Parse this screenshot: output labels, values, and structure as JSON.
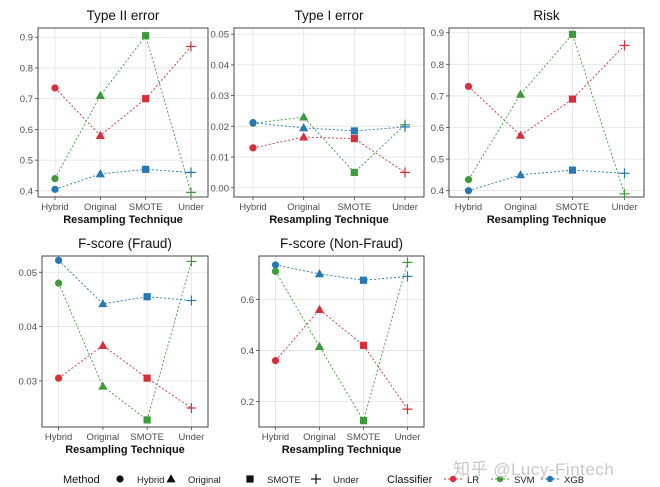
{
  "colors": {
    "LR": "#d62f3a",
    "SVM": "#3e9b3a",
    "XGB": "#2678b2"
  },
  "xlabel": "Resampling Technique",
  "categories": [
    "Hybrid",
    "Original",
    "SMOTE",
    "Under"
  ],
  "legend": {
    "method_title": "Method",
    "methods": [
      {
        "label": "Hybrid",
        "shape": "circle"
      },
      {
        "label": "Original",
        "shape": "triangle"
      },
      {
        "label": "SMOTE",
        "shape": "square"
      },
      {
        "label": "Under",
        "shape": "plus"
      }
    ],
    "classifier_title": "Classifier",
    "classifiers": [
      "LR",
      "SVM",
      "XGB"
    ]
  },
  "watermark": "知乎 @Lucy-Fintech",
  "chart_data": [
    {
      "type": "scatter",
      "title": "Type II error",
      "ylim": [
        0.38,
        0.93
      ],
      "yticks": [
        0.4,
        0.5,
        0.6,
        0.7,
        0.8,
        0.9
      ],
      "ytick_labels": [
        "0.4",
        "0.5",
        "0.6",
        "0.7",
        "0.8",
        "0.9"
      ],
      "xlabel": "Resampling Technique",
      "series": [
        {
          "name": "LR",
          "values": [
            0.735,
            0.58,
            0.7,
            0.87
          ]
        },
        {
          "name": "SVM",
          "values": [
            0.44,
            0.71,
            0.905,
            0.395
          ]
        },
        {
          "name": "XGB",
          "values": [
            0.405,
            0.455,
            0.47,
            0.46
          ]
        }
      ]
    },
    {
      "type": "scatter",
      "title": "Type I error",
      "ylim": [
        -0.003,
        0.052
      ],
      "yticks": [
        0.0,
        0.01,
        0.02,
        0.03,
        0.04,
        0.05
      ],
      "ytick_labels": [
        "0.00",
        "0.01",
        "0.02",
        "0.03",
        "0.04",
        "0.05"
      ],
      "xlabel": "Resampling Technique",
      "series": [
        {
          "name": "LR",
          "values": [
            0.013,
            0.0165,
            0.016,
            0.005
          ]
        },
        {
          "name": "SVM",
          "values": [
            0.021,
            0.023,
            0.005,
            0.0205
          ]
        },
        {
          "name": "XGB",
          "values": [
            0.0212,
            0.0195,
            0.0185,
            0.0198
          ]
        }
      ]
    },
    {
      "type": "scatter",
      "title": "Risk",
      "ylim": [
        0.38,
        0.915
      ],
      "yticks": [
        0.4,
        0.5,
        0.6,
        0.7,
        0.8,
        0.9
      ],
      "ytick_labels": [
        "0.4",
        "0.5",
        "0.6",
        "0.7",
        "0.8",
        "0.9"
      ],
      "xlabel": "Resampling Technique",
      "series": [
        {
          "name": "LR",
          "values": [
            0.73,
            0.575,
            0.69,
            0.86
          ]
        },
        {
          "name": "SVM",
          "values": [
            0.435,
            0.705,
            0.895,
            0.39
          ]
        },
        {
          "name": "XGB",
          "values": [
            0.4,
            0.45,
            0.465,
            0.455
          ]
        }
      ]
    },
    {
      "type": "scatter",
      "title": "F-score (Fraud)",
      "ylim": [
        0.0215,
        0.053
      ],
      "yticks": [
        0.03,
        0.04,
        0.05
      ],
      "ytick_labels": [
        "0.03",
        "0.04",
        "0.05"
      ],
      "xlabel": "Resampling Technique",
      "series": [
        {
          "name": "LR",
          "values": [
            0.0305,
            0.0365,
            0.0305,
            0.025
          ]
        },
        {
          "name": "SVM",
          "values": [
            0.048,
            0.029,
            0.0228,
            0.052
          ]
        },
        {
          "name": "XGB",
          "values": [
            0.0522,
            0.0442,
            0.0455,
            0.0448
          ]
        }
      ]
    },
    {
      "type": "scatter",
      "title": "F-score (Non-Fraud)",
      "ylim": [
        0.1,
        0.77
      ],
      "yticks": [
        0.2,
        0.4,
        0.6
      ],
      "ytick_labels": [
        "0.2",
        "0.4",
        "0.6"
      ],
      "xlabel": "Resampling Technique",
      "series": [
        {
          "name": "LR",
          "values": [
            0.36,
            0.56,
            0.42,
            0.17
          ]
        },
        {
          "name": "SVM",
          "values": [
            0.71,
            0.415,
            0.125,
            0.745
          ]
        },
        {
          "name": "XGB",
          "values": [
            0.735,
            0.7,
            0.675,
            0.69
          ]
        }
      ]
    }
  ]
}
